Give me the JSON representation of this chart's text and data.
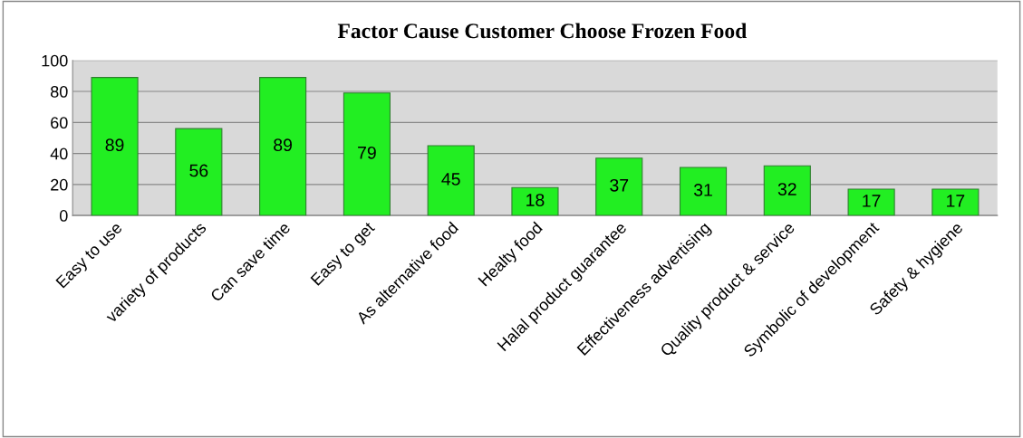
{
  "chart_data": {
    "type": "bar",
    "title": "Factor Cause Customer Choose Frozen Food",
    "categories": [
      "Easy to use",
      "variety of products",
      "Can save time",
      "Easy to get",
      "As alternative food",
      "Healty food",
      "Halal product guarantee",
      "Effectiveness advertising",
      "Quality product & service",
      "Symbolic of development",
      "Safety & hygiene"
    ],
    "values": [
      89,
      56,
      89,
      79,
      45,
      18,
      37,
      31,
      32,
      17,
      17
    ],
    "color": "#22ee22",
    "ylim": [
      0,
      100
    ],
    "yticks": [
      0,
      20,
      40,
      60,
      80,
      100
    ],
    "grid": "y",
    "data_labels": true,
    "legend": false
  }
}
